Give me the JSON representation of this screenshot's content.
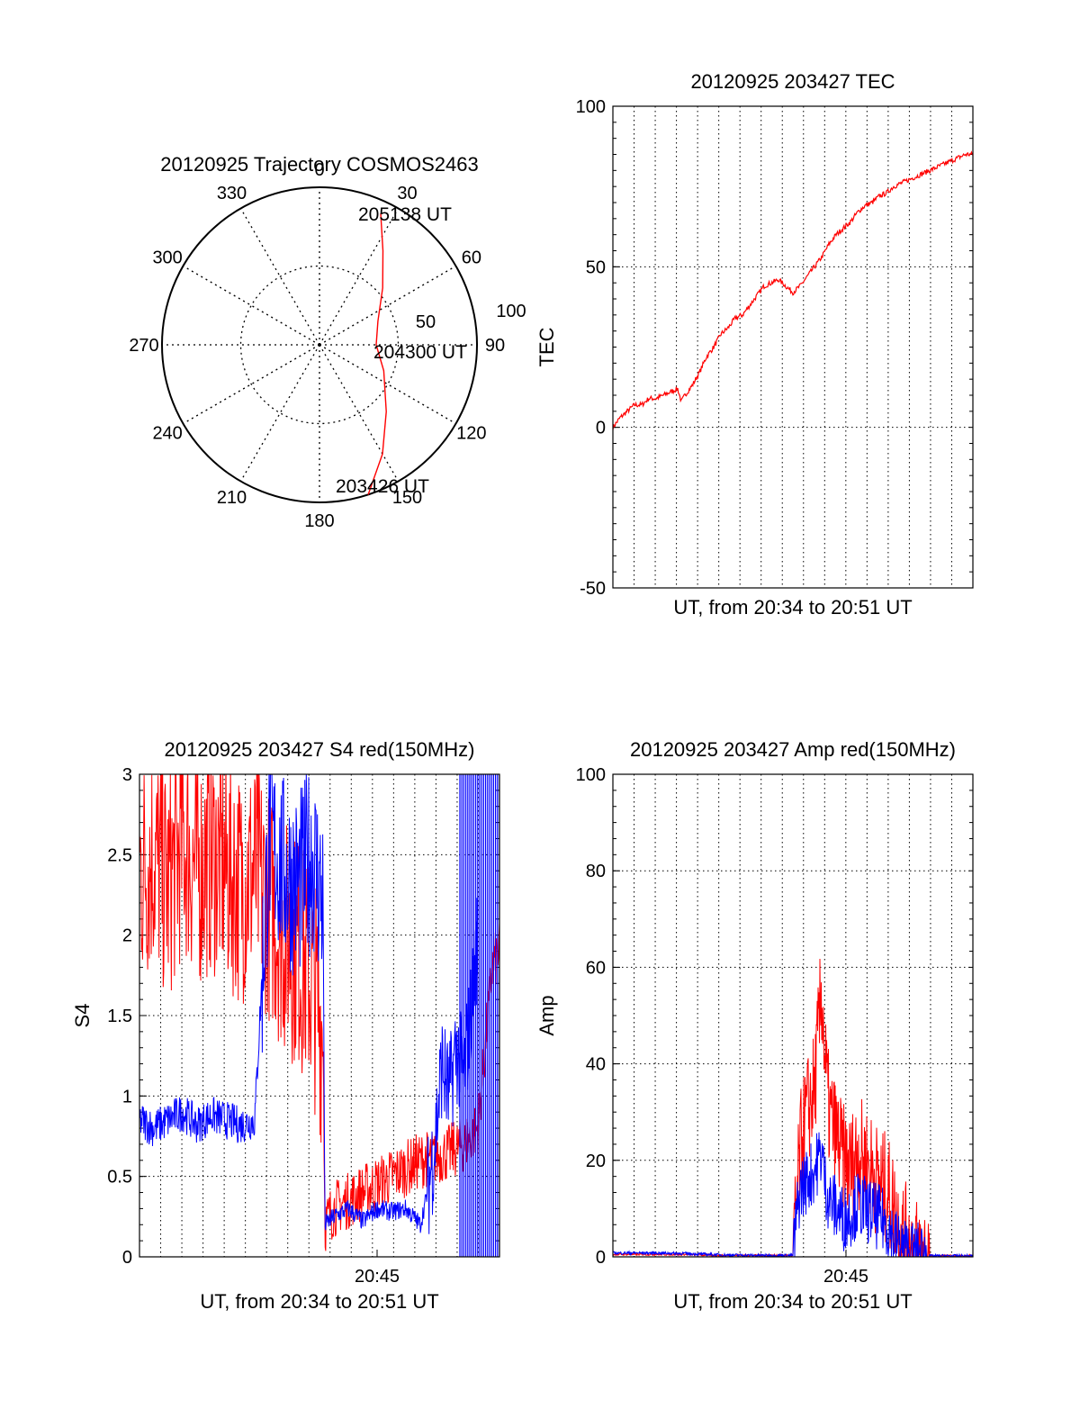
{
  "chart_data": [
    {
      "type": "polar",
      "title": "20120925 Trajectory COSMOS2463",
      "angle_labels": [
        "0",
        "30",
        "60",
        "90",
        "120",
        "150",
        "180",
        "210",
        "240",
        "270",
        "300",
        "330"
      ],
      "angles_deg": [
        0,
        30,
        60,
        90,
        120,
        150,
        180,
        210,
        240,
        270,
        300,
        330
      ],
      "radius_labels": [
        "50",
        "100"
      ],
      "radius_values": [
        50,
        100
      ],
      "rlim": [
        0,
        100
      ],
      "grid": true,
      "annotations": [
        "205138 UT",
        "204300 UT",
        "203426 UT"
      ],
      "series": [
        {
          "color": "#ff0000",
          "points": [
            {
              "az": 162.0,
              "r": 100
            },
            {
              "az": 150.0,
              "r": 80
            },
            {
              "az": 135.0,
              "r": 60
            },
            {
              "az": 112.0,
              "r": 44
            },
            {
              "az": 90.0,
              "r": 36
            },
            {
              "az": 68.0,
              "r": 40
            },
            {
              "az": 48.0,
              "r": 54
            },
            {
              "az": 34.0,
              "r": 72
            },
            {
              "az": 25.0,
              "r": 92
            }
          ]
        }
      ]
    },
    {
      "type": "line",
      "title": "20120925 203427 TEC",
      "xlabel": "UT, from 20:34 to 20:51 UT",
      "ylabel": "TEC",
      "ylim": [
        -50,
        100
      ],
      "y_ticks": [
        -50,
        0,
        50,
        100
      ],
      "y_tick_labels": [
        "-50",
        "0",
        "50",
        "100"
      ],
      "xlim": [
        0,
        100
      ],
      "grid": true,
      "series": [
        {
          "color": "#ff0000",
          "x": [
            0,
            2,
            4,
            6,
            8,
            10,
            12,
            14,
            16,
            18,
            19,
            20,
            22,
            24,
            26,
            28,
            30,
            32,
            34,
            36,
            38,
            40,
            42,
            44,
            46,
            48,
            50,
            52,
            54,
            56,
            58,
            60,
            62,
            64,
            66,
            68,
            70,
            72,
            74,
            76,
            78,
            80,
            82,
            84,
            86,
            88,
            90,
            92,
            94,
            96,
            98,
            100
          ],
          "y": [
            0,
            3,
            5,
            7,
            7,
            9,
            9,
            10,
            11,
            12,
            8,
            10,
            13,
            17,
            22,
            25,
            29,
            31,
            34,
            35,
            38,
            41,
            44,
            45,
            46,
            44,
            42,
            44,
            47,
            50,
            53,
            57,
            60,
            62,
            64,
            67,
            69,
            70,
            72,
            73,
            75,
            76,
            77,
            78,
            79,
            80,
            81,
            82,
            83,
            84,
            85,
            85
          ]
        }
      ]
    },
    {
      "type": "line",
      "title": "20120925 203427 S4 red(150MHz)",
      "xlabel": "UT, from 20:34 to 20:51 UT",
      "ylabel": "S4",
      "ylim": [
        0,
        3
      ],
      "y_ticks": [
        0,
        0.5,
        1,
        1.5,
        2,
        2.5,
        3
      ],
      "y_tick_labels": [
        "0",
        "0.5",
        "1",
        "1.5",
        "2",
        "2.5",
        "3"
      ],
      "x_tick_labels": [
        "20:45"
      ],
      "xlim": [
        0,
        100
      ],
      "grid": true,
      "series": [
        {
          "color": "#ff0000",
          "x": [
            0,
            4,
            8,
            12,
            16,
            20,
            24,
            28,
            32,
            36,
            40,
            44,
            48,
            51,
            51.5,
            54,
            58,
            62,
            66,
            70,
            74,
            78,
            82,
            86,
            90,
            94,
            98,
            100
          ],
          "y": [
            2.4,
            2.5,
            2.3,
            2.6,
            2.4,
            2.5,
            2.4,
            2.3,
            2.4,
            2.2,
            2.0,
            1.9,
            1.7,
            1.4,
            0.2,
            0.3,
            0.35,
            0.4,
            0.45,
            0.5,
            0.55,
            0.6,
            0.62,
            0.65,
            0.7,
            0.8,
            1.8,
            1.9
          ]
        },
        {
          "color": "#0000ff",
          "x": [
            0,
            4,
            8,
            12,
            16,
            20,
            24,
            28,
            32,
            36,
            40,
            44,
            48,
            51,
            51.5,
            54,
            58,
            62,
            66,
            70,
            74,
            78,
            80,
            82,
            84,
            86,
            88,
            90,
            92,
            94
          ],
          "y": [
            0.85,
            0.8,
            0.85,
            0.9,
            0.82,
            0.88,
            0.85,
            0.82,
            0.85,
            2.6,
            2.4,
            2.3,
            2.5,
            2.2,
            0.2,
            0.25,
            0.3,
            0.22,
            0.3,
            0.28,
            0.3,
            0.2,
            0.4,
            0.7,
            1.2,
            1.0,
            1.3,
            1.1,
            1.5,
            2.0
          ]
        }
      ]
    },
    {
      "type": "line",
      "title": "20120925 203427 Amp red(150MHz)",
      "xlabel": "UT, from 20:34 to 20:51 UT",
      "ylabel": "Amp",
      "ylim": [
        0,
        100
      ],
      "y_ticks": [
        0,
        20,
        40,
        60,
        80,
        100
      ],
      "y_tick_labels": [
        "0",
        "20",
        "40",
        "60",
        "80",
        "100"
      ],
      "x_tick_labels": [
        "20:45"
      ],
      "xlim": [
        0,
        100
      ],
      "grid": true,
      "series": [
        {
          "color": "#ff0000",
          "x": [
            0,
            10,
            20,
            30,
            40,
            50,
            51,
            52,
            54,
            56,
            58,
            59,
            60,
            62,
            64,
            66,
            68,
            70,
            72,
            74,
            76,
            78,
            80,
            82,
            84,
            86,
            88,
            100
          ],
          "y": [
            0.5,
            0.5,
            0.5,
            0.3,
            0.3,
            0.3,
            10,
            22,
            30,
            35,
            55,
            40,
            30,
            25,
            20,
            18,
            22,
            20,
            18,
            15,
            14,
            10,
            5,
            3,
            1,
            0.3,
            0.2,
            0.2
          ]
        },
        {
          "color": "#0000ff",
          "x": [
            0,
            10,
            20,
            30,
            40,
            50,
            51,
            52,
            54,
            56,
            58,
            59,
            60,
            62,
            64,
            66,
            68,
            70,
            72,
            74,
            76,
            78,
            80,
            82,
            84,
            86,
            88,
            100
          ],
          "y": [
            0.8,
            0.8,
            0.7,
            0.4,
            0.3,
            0.3,
            8,
            14,
            16,
            18,
            22,
            15,
            12,
            10,
            8,
            9,
            11,
            10,
            9,
            8,
            7,
            4,
            2,
            1,
            0.5,
            0.3,
            0.2,
            0.2
          ]
        }
      ]
    }
  ]
}
